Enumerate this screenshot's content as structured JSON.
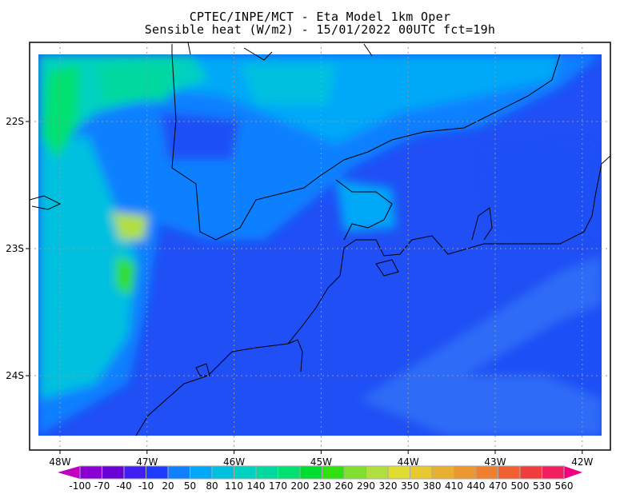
{
  "title": {
    "line1": "CPTEC/INPE/MCT -  Eta Model 1km Oper",
    "line2": "Sensible heat (W/m2) - 15/01/2022 00UTC fct=19h"
  },
  "map": {
    "variable": "Sensible heat",
    "units": "W/m2",
    "lon_labels": [
      "48W",
      "47W",
      "46W",
      "45W",
      "44W",
      "43W",
      "42W"
    ],
    "lat_labels": [
      "22S",
      "23S",
      "24S"
    ],
    "grid": "dotted",
    "coastline_color": "#000000"
  },
  "colorbar": {
    "levels": [
      "-100",
      "-70",
      "-40",
      "-10",
      "20",
      "50",
      "80",
      "110",
      "140",
      "170",
      "200",
      "230",
      "260",
      "290",
      "320",
      "350",
      "380",
      "410",
      "440",
      "470",
      "500",
      "530",
      "560"
    ],
    "colors": [
      "#8a00d4",
      "#6a00d8",
      "#4020f0",
      "#1e3cff",
      "#1080ff",
      "#00a8f8",
      "#00c0e0",
      "#00d0c0",
      "#00d8a0",
      "#00e070",
      "#00dc30",
      "#30e010",
      "#80e030",
      "#b0e040",
      "#e0dc30",
      "#e8c830",
      "#e8b030",
      "#eb9830",
      "#f08030",
      "#f06030",
      "#f03c3c",
      "#f02060"
    ],
    "under_color": "#c000c0",
    "over_color": "#f00080"
  }
}
